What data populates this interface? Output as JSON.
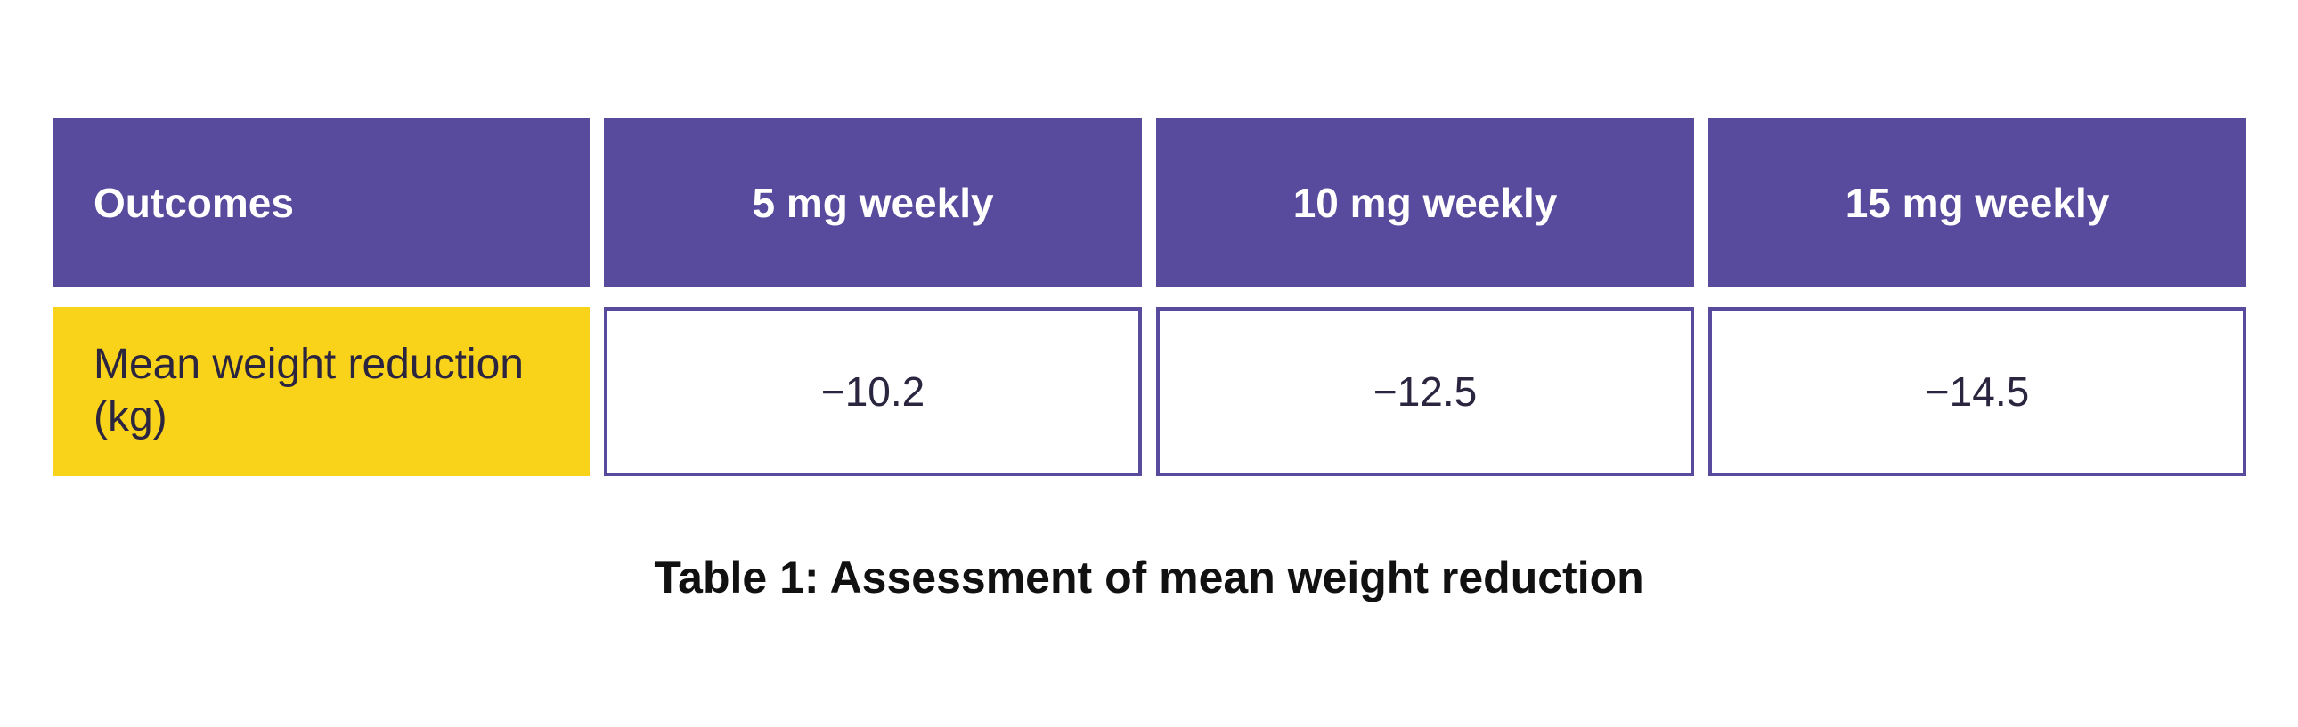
{
  "colors": {
    "header_bg": "#584a9c",
    "label_bg": "#f8d31a",
    "border": "#584a9c"
  },
  "table": {
    "headers": [
      "Outcomes",
      "5 mg weekly",
      "10 mg weekly",
      "15 mg weekly"
    ],
    "rows": [
      {
        "label": "Mean weight reduction (kg)",
        "values": [
          "−10.2",
          "−12.5",
          "−14.5"
        ]
      }
    ]
  },
  "caption": "Table 1: Assessment of mean weight reduction"
}
